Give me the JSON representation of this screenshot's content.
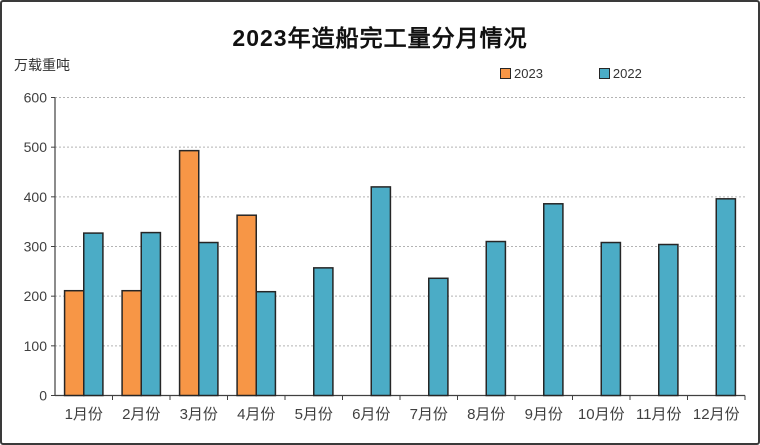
{
  "frame": {
    "background": "#ffffff",
    "border_color": "#3a3a3a"
  },
  "chart": {
    "title": "2023年造船完工量分月情况",
    "unit_label": "万载重吨"
  },
  "chart_data": {
    "type": "bar",
    "title": "2023年造船完工量分月情况",
    "xlabel": "",
    "ylabel": "万载重吨",
    "ylim": [
      0,
      600
    ],
    "ytick_step": 100,
    "grid": "horizontal-dashed",
    "legend_position": "top-right",
    "categories": [
      "1月份",
      "2月份",
      "3月份",
      "4月份",
      "5月份",
      "6月份",
      "7月份",
      "8月份",
      "9月份",
      "10月份",
      "11月份",
      "12月份"
    ],
    "series": [
      {
        "name": "2023",
        "color": "#F79646",
        "values": [
          211,
          211,
          493,
          363,
          null,
          null,
          null,
          null,
          null,
          null,
          null,
          null
        ]
      },
      {
        "name": "2022",
        "color": "#4BACC6",
        "values": [
          327,
          328,
          308,
          209,
          257,
          420,
          236,
          310,
          386,
          308,
          304,
          396
        ]
      }
    ],
    "colors": {
      "bar_border": "#262626",
      "gridline": "#b3b3b3",
      "axis": "#404040",
      "tick_label": "#404040"
    }
  }
}
